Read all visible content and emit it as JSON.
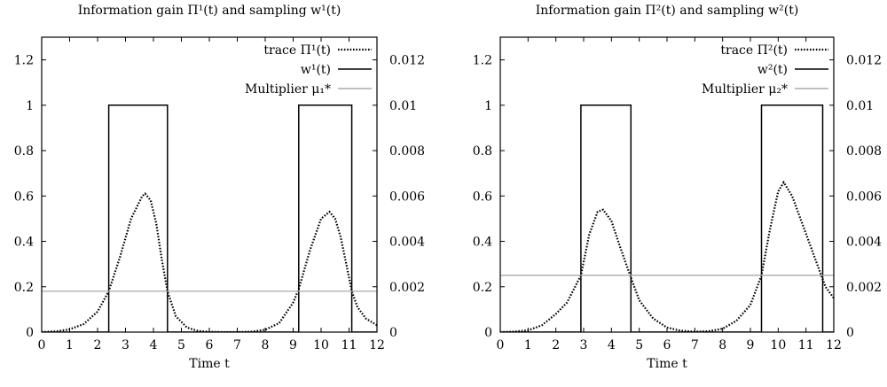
{
  "chart_data": [
    {
      "type": "line",
      "title": "Information gain Π¹(t) and sampling w¹(t)",
      "xlabel": "Time t",
      "ylabel": "",
      "xlim": [
        0,
        12
      ],
      "ylim": [
        0,
        1.3
      ],
      "y2lim": [
        0,
        0.013
      ],
      "x_ticks": [
        "0",
        "1",
        "2",
        "3",
        "4",
        "5",
        "6",
        "7",
        "8",
        "9",
        "10",
        "11",
        "12"
      ],
      "y_ticks": [
        "0",
        "0.2",
        "0.4",
        "0.6",
        "0.8",
        "1",
        "1.2"
      ],
      "y2_ticks": [
        "0",
        "0.002",
        "0.004",
        "0.006",
        "0.008",
        "0.01",
        "0.012"
      ],
      "grid": false,
      "legend_position": "top-right",
      "series": [
        {
          "name": "trace Π¹(t)",
          "style": "dotted",
          "color": "#000000",
          "x": [
            0,
            0.5,
            1,
            1.5,
            2,
            2.4,
            2.8,
            3.2,
            3.6,
            3.7,
            3.9,
            4.1,
            4.3,
            4.5,
            4.8,
            5.2,
            5.6,
            6,
            6.5,
            7,
            7.5,
            8,
            8.5,
            9,
            9.2,
            9.6,
            10,
            10.3,
            10.5,
            10.7,
            10.9,
            11.1,
            11.3,
            11.6,
            12
          ],
          "y": [
            0,
            0.003,
            0.012,
            0.035,
            0.09,
            0.18,
            0.33,
            0.5,
            0.6,
            0.61,
            0.58,
            0.48,
            0.32,
            0.18,
            0.07,
            0.02,
            0.005,
            0.001,
            0,
            0,
            0.002,
            0.01,
            0.04,
            0.13,
            0.19,
            0.36,
            0.5,
            0.53,
            0.5,
            0.42,
            0.3,
            0.18,
            0.11,
            0.06,
            0.03
          ]
        },
        {
          "name": "w¹(t)",
          "style": "solid",
          "color": "#000000",
          "x": [
            0,
            2.4,
            2.4,
            4.5,
            4.5,
            9.2,
            9.2,
            11.1,
            11.1,
            12
          ],
          "y": [
            0,
            0,
            1,
            1,
            0,
            0,
            1,
            1,
            0,
            0
          ]
        },
        {
          "name": "Multiplier μ₁*",
          "style": "solid",
          "color": "#aaaaaa",
          "value": 0.18
        }
      ]
    },
    {
      "type": "line",
      "title": "Information gain Π²(t) and sampling w²(t)",
      "xlabel": "Time t",
      "ylabel": "",
      "xlim": [
        0,
        12
      ],
      "ylim": [
        0,
        1.3
      ],
      "y2lim": [
        0,
        0.013
      ],
      "x_ticks": [
        "0",
        "1",
        "2",
        "3",
        "4",
        "5",
        "6",
        "7",
        "8",
        "9",
        "10",
        "11",
        "12"
      ],
      "y_ticks": [
        "0",
        "0.2",
        "0.4",
        "0.6",
        "0.8",
        "1",
        "1.2"
      ],
      "y2_ticks": [
        "0",
        "0.002",
        "0.004",
        "0.006",
        "0.008",
        "0.01",
        "0.012"
      ],
      "grid": false,
      "legend_position": "top-right",
      "series": [
        {
          "name": "trace Π²(t)",
          "style": "dotted",
          "color": "#000000",
          "x": [
            0,
            0.5,
            1,
            1.5,
            2,
            2.4,
            2.9,
            3.2,
            3.5,
            3.7,
            4,
            4.3,
            4.7,
            5,
            5.5,
            6,
            6.5,
            7,
            7.5,
            8,
            8.5,
            9,
            9.4,
            9.7,
            10,
            10.2,
            10.5,
            10.8,
            11.1,
            11.4,
            11.7,
            12
          ],
          "y": [
            0,
            0.002,
            0.008,
            0.03,
            0.08,
            0.13,
            0.25,
            0.43,
            0.53,
            0.54,
            0.49,
            0.38,
            0.24,
            0.14,
            0.06,
            0.02,
            0.006,
            0.002,
            0.004,
            0.015,
            0.05,
            0.12,
            0.25,
            0.45,
            0.62,
            0.66,
            0.6,
            0.5,
            0.4,
            0.3,
            0.2,
            0.15
          ]
        },
        {
          "name": "w²(t)",
          "style": "solid",
          "color": "#000000",
          "x": [
            0,
            2.9,
            2.9,
            4.7,
            4.7,
            9.4,
            9.4,
            11.6,
            11.6,
            12
          ],
          "y": [
            0,
            0,
            1,
            1,
            0,
            0,
            1,
            1,
            0,
            0
          ]
        },
        {
          "name": "Multiplier μ₂*",
          "style": "solid",
          "color": "#aaaaaa",
          "value": 0.25
        }
      ]
    }
  ]
}
